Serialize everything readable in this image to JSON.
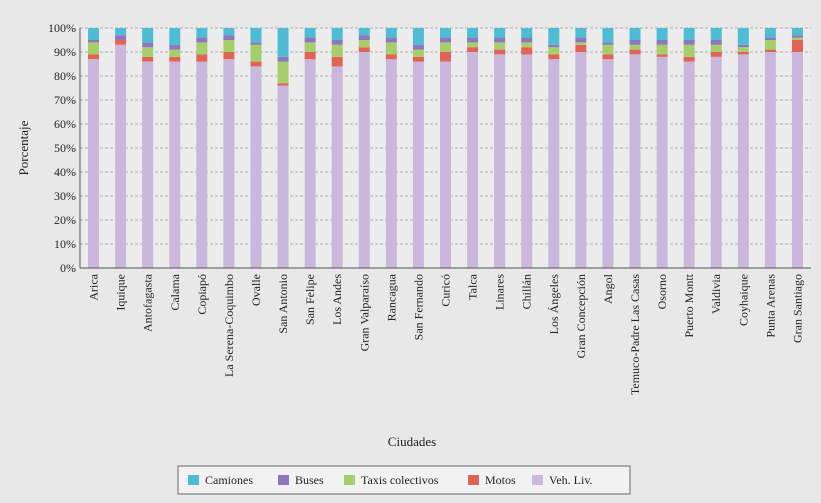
{
  "chart_data": {
    "type": "bar",
    "stacked": true,
    "title": "",
    "xlabel": "Ciudades",
    "ylabel": "Porcentaje",
    "ylim": [
      0,
      100
    ],
    "y_ticks": [
      "0%",
      "10%",
      "20%",
      "30%",
      "40%",
      "50%",
      "60%",
      "70%",
      "80%",
      "90%",
      "100%"
    ],
    "grid": true,
    "legend_position": "bottom",
    "categories": [
      "Arica",
      "Iquique",
      "Antofagasta",
      "Calama",
      "Copiapó",
      "La Serena-Coquimbo",
      "Ovalle",
      "San Antonio",
      "San Felipe",
      "Los Andes",
      "Gran Valparaíso",
      "Rancagua",
      "San Fernando",
      "Curicó",
      "Talca",
      "Linares",
      "Chillán",
      "Los Ángeles",
      "Gran Concepción",
      "Angol",
      "Temuco-Padre Las Casas",
      "Osorno",
      "Puerto Montt",
      "Valdivia",
      "Coyhaique",
      "Punta Arenas",
      "Gran Santiago"
    ],
    "series": [
      {
        "name": "Veh. Liv.",
        "color": "#c9b8dc",
        "values": [
          87,
          93,
          86,
          86,
          86,
          87,
          84,
          76,
          87,
          84,
          90,
          87,
          86,
          86,
          90,
          89,
          89,
          87,
          90,
          87,
          89,
          88,
          86,
          88,
          89,
          90,
          90
        ]
      },
      {
        "name": "Motos",
        "color": "#e06355",
        "values": [
          2,
          2,
          2,
          2,
          3,
          3,
          2,
          1,
          3,
          4,
          2,
          2,
          2,
          4,
          2,
          2,
          3,
          2,
          3,
          2,
          2,
          1,
          2,
          2,
          1,
          1,
          5
        ]
      },
      {
        "name": "Taxis colectivos",
        "color": "#a6cf6b",
        "values": [
          5,
          0,
          4,
          3,
          5,
          5,
          7,
          9,
          4,
          5,
          3,
          5,
          3,
          4,
          2,
          3,
          2,
          3,
          1,
          4,
          2,
          4,
          5,
          3,
          2,
          4,
          1
        ]
      },
      {
        "name": "Buses",
        "color": "#8b78bd",
        "values": [
          1,
          2,
          2,
          2,
          2,
          2,
          1,
          2,
          2,
          2,
          2,
          2,
          2,
          2,
          2,
          2,
          2,
          1,
          2,
          1,
          2,
          2,
          2,
          2,
          1,
          1,
          1
        ]
      },
      {
        "name": "Camiones",
        "color": "#4fbcd6",
        "values": [
          5,
          3,
          6,
          7,
          4,
          3,
          6,
          12,
          4,
          5,
          3,
          4,
          7,
          4,
          4,
          4,
          4,
          7,
          4,
          6,
          5,
          5,
          5,
          5,
          7,
          4,
          3
        ]
      }
    ],
    "legend_order": [
      "Camiones",
      "Buses",
      "Taxis colectivos",
      "Motos",
      "Veh. Liv."
    ]
  }
}
